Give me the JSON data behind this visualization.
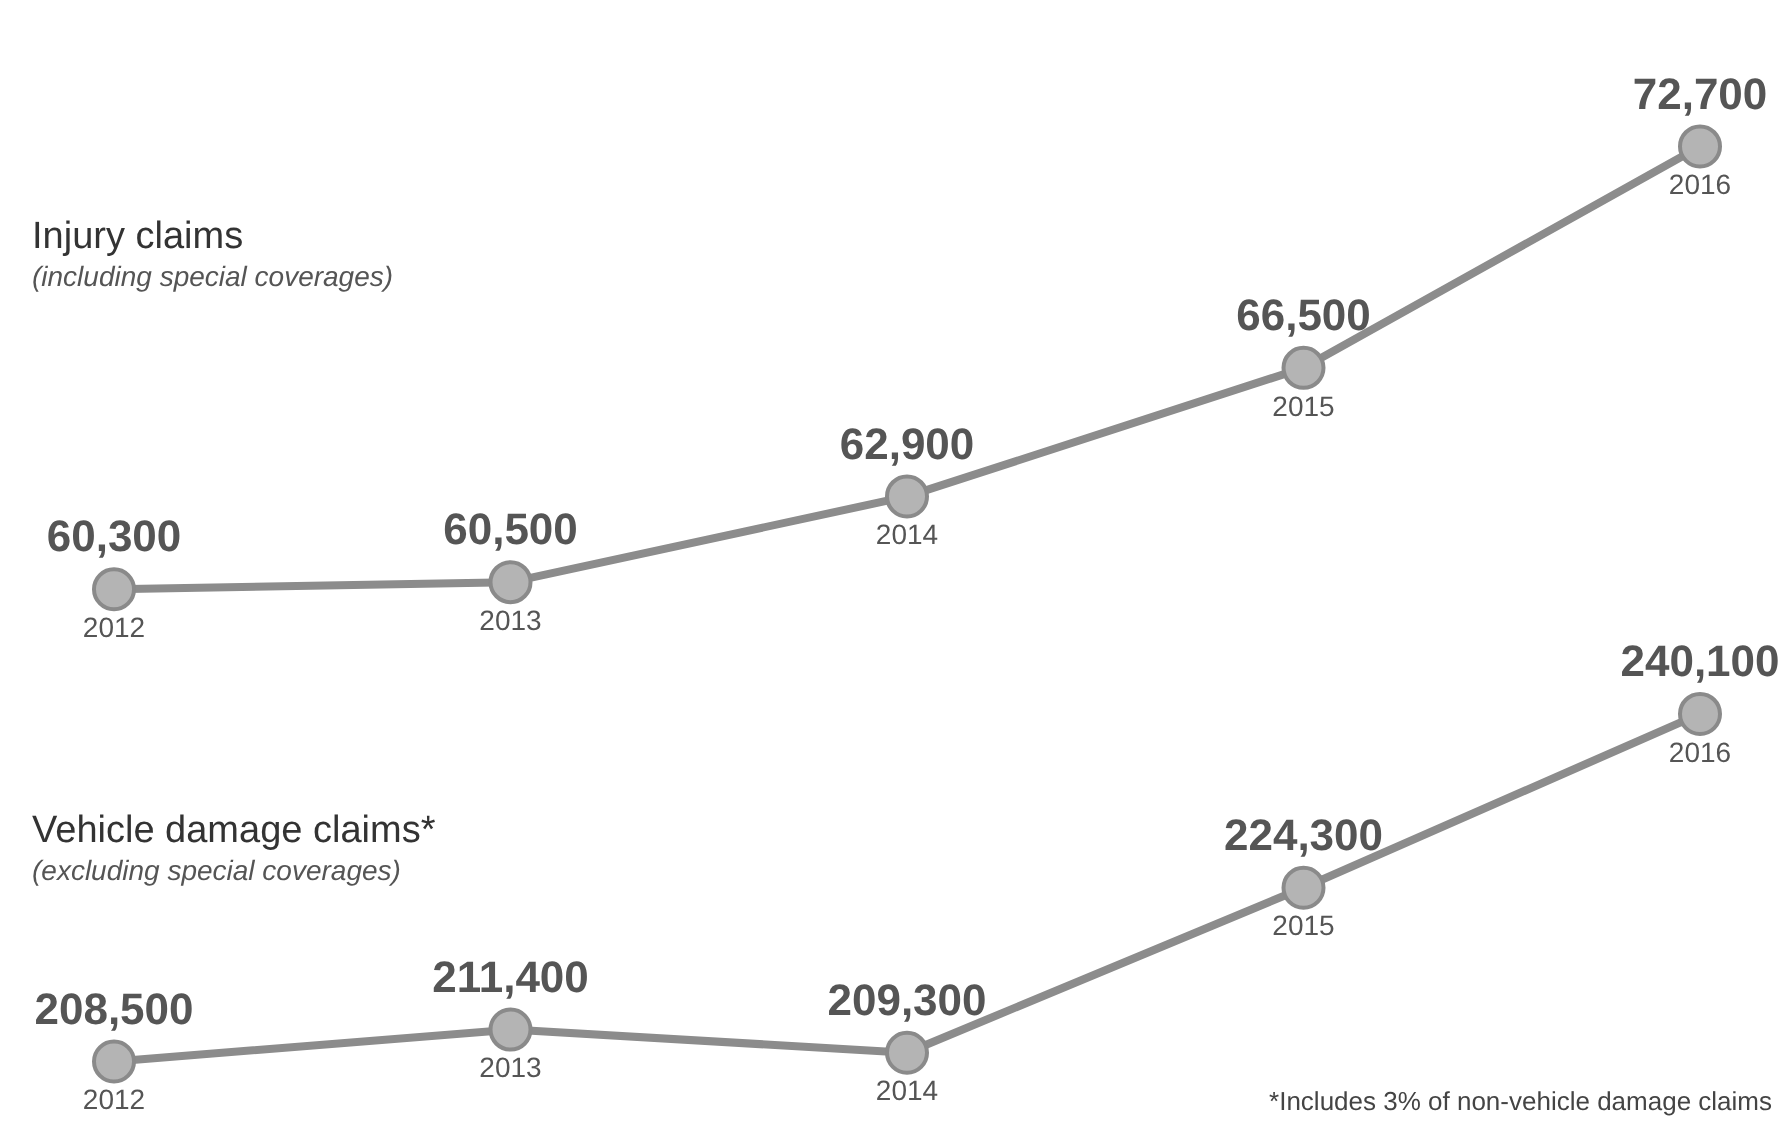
{
  "chart_data": [
    {
      "type": "line",
      "title": "Injury claims",
      "subtitle": "(including special coverages)",
      "categories": [
        "2012",
        "2013",
        "2014",
        "2015",
        "2016"
      ],
      "series": [
        {
          "color": "#8c8c8c",
          "values": [
            60300,
            60500,
            62900,
            66500,
            72700
          ],
          "value_labels": [
            "60,300",
            "60,500",
            "62,900",
            "66,500",
            "72,700"
          ]
        }
      ],
      "tick_labels": "x",
      "marker": "circle"
    },
    {
      "type": "line",
      "title": "Vehicle damage claims*",
      "subtitle": "(excluding special coverages)",
      "categories": [
        "2012",
        "2013",
        "2014",
        "2015",
        "2016"
      ],
      "series": [
        {
          "color": "#8c8c8c",
          "values": [
            208500,
            211400,
            209300,
            224300,
            240100
          ],
          "value_labels": [
            "208,500",
            "211,400",
            "209,300",
            "224,300",
            "240,100"
          ]
        }
      ],
      "tick_labels": "x",
      "marker": "circle",
      "annotations": [
        "*Includes 3% of non-vehicle damage claims"
      ]
    }
  ]
}
